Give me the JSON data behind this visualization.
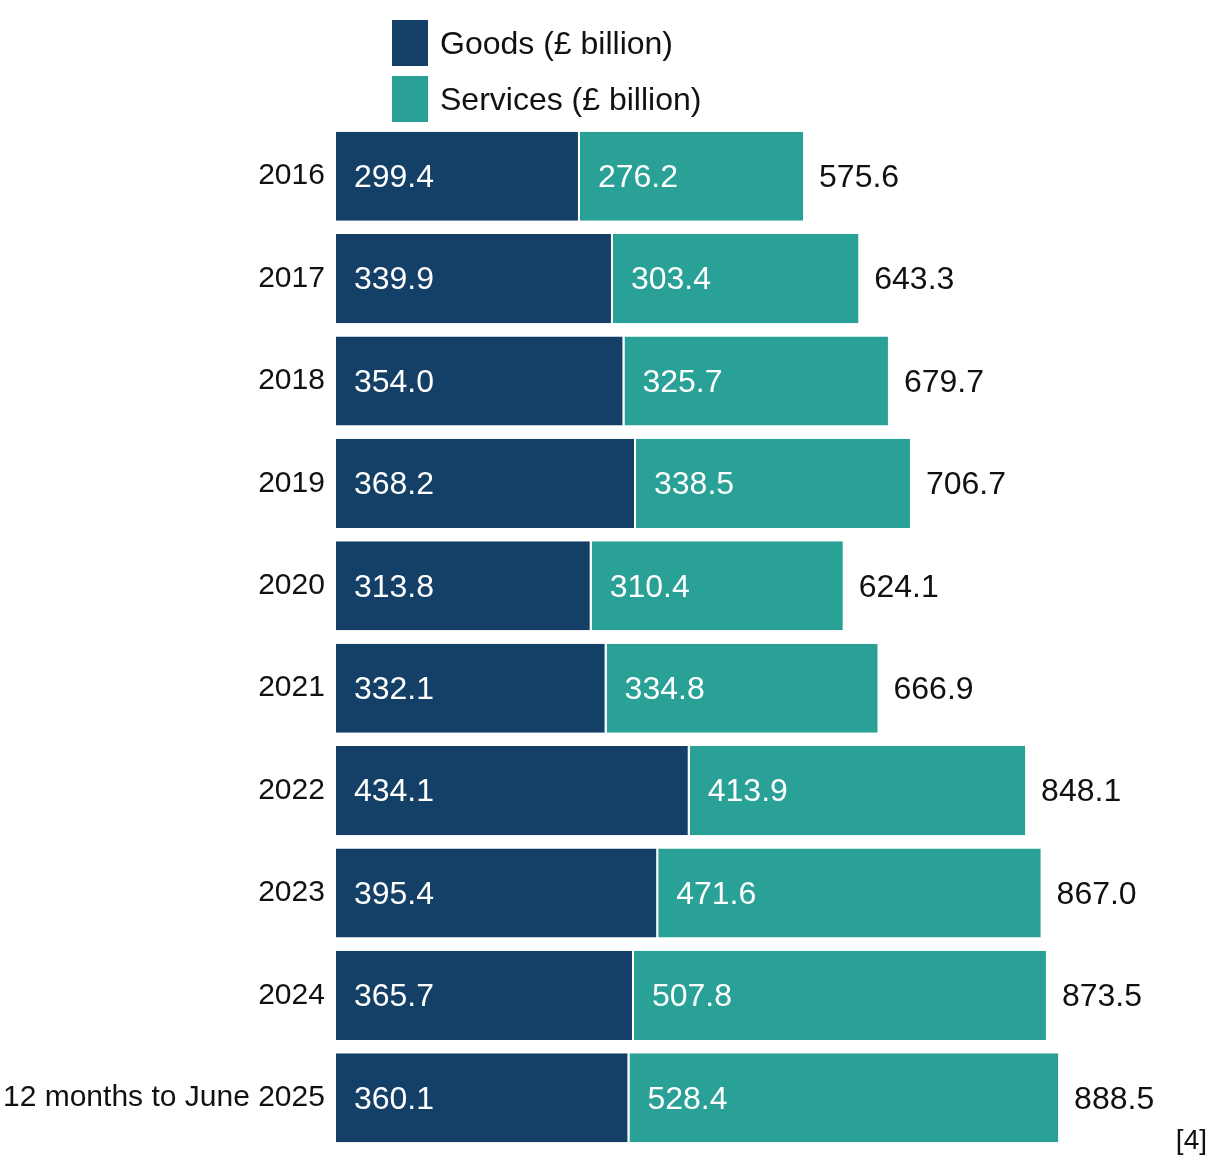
{
  "chart_data": {
    "type": "bar",
    "orientation": "horizontal",
    "stacked": true,
    "categories": [
      "2016",
      "2017",
      "2018",
      "2019",
      "2020",
      "2021",
      "2022",
      "2023",
      "2024",
      "12 months to June 2025"
    ],
    "series": [
      {
        "name": "Goods (£ billion)",
        "color": "#143f66",
        "values": [
          299.4,
          339.9,
          354.0,
          368.2,
          313.8,
          332.1,
          434.1,
          395.4,
          365.7,
          360.1
        ],
        "value_labels": [
          "299.4",
          "339.9",
          "354.0",
          "368.2",
          "313.8",
          "332.1",
          "434.1",
          "395.4",
          "365.7",
          "360.1"
        ]
      },
      {
        "name": "Services (£ billion)",
        "color": "#2aa197",
        "values": [
          276.2,
          303.4,
          325.7,
          338.5,
          310.4,
          334.8,
          413.9,
          471.6,
          507.8,
          528.4
        ],
        "value_labels": [
          "276.2",
          "303.4",
          "325.7",
          "338.5",
          "310.4",
          "334.8",
          "413.9",
          "471.6",
          "507.8",
          "528.4"
        ]
      }
    ],
    "totals": [
      "575.6",
      "643.3",
      "679.7",
      "706.7",
      "624.1",
      "666.9",
      "848.1",
      "867.0",
      "873.5",
      "888.5"
    ],
    "grid": false,
    "legend": "top left",
    "tick_labels": "y",
    "annotations": [
      "[4]"
    ]
  }
}
